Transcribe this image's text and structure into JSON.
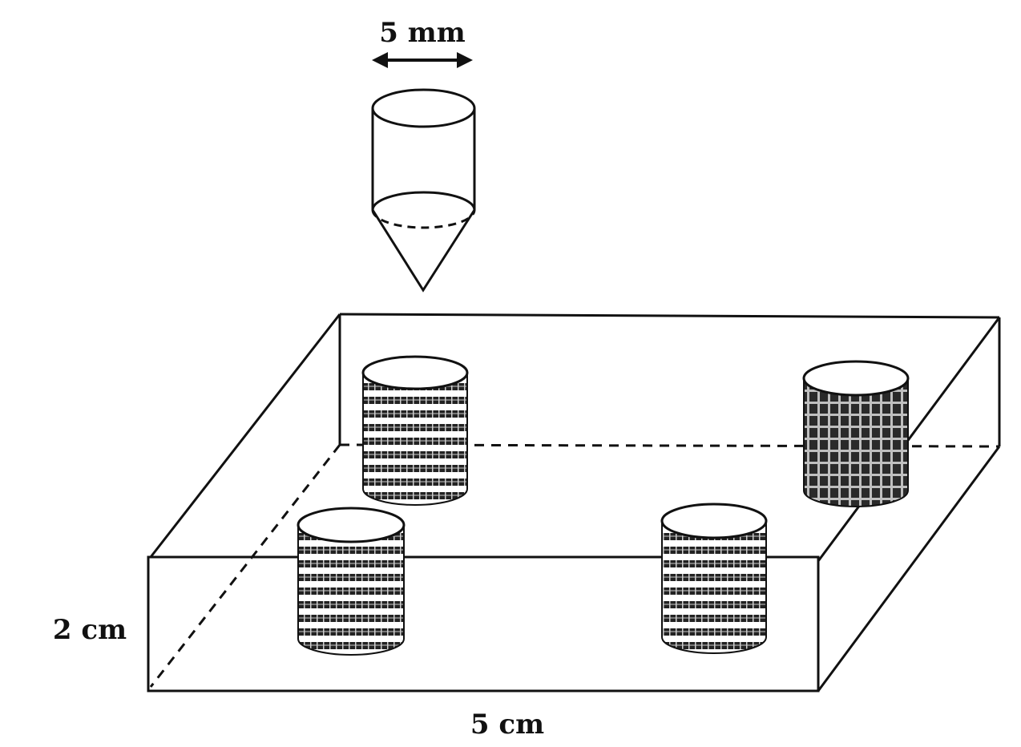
{
  "labels": {
    "diameter": "5 mm",
    "height": "2 cm",
    "width": "5 cm"
  },
  "colors": {
    "ink": "#111111",
    "paper": "#ffffff",
    "ring_dark": "#1a1a1a",
    "ring_light": "#9a9a9a"
  }
}
